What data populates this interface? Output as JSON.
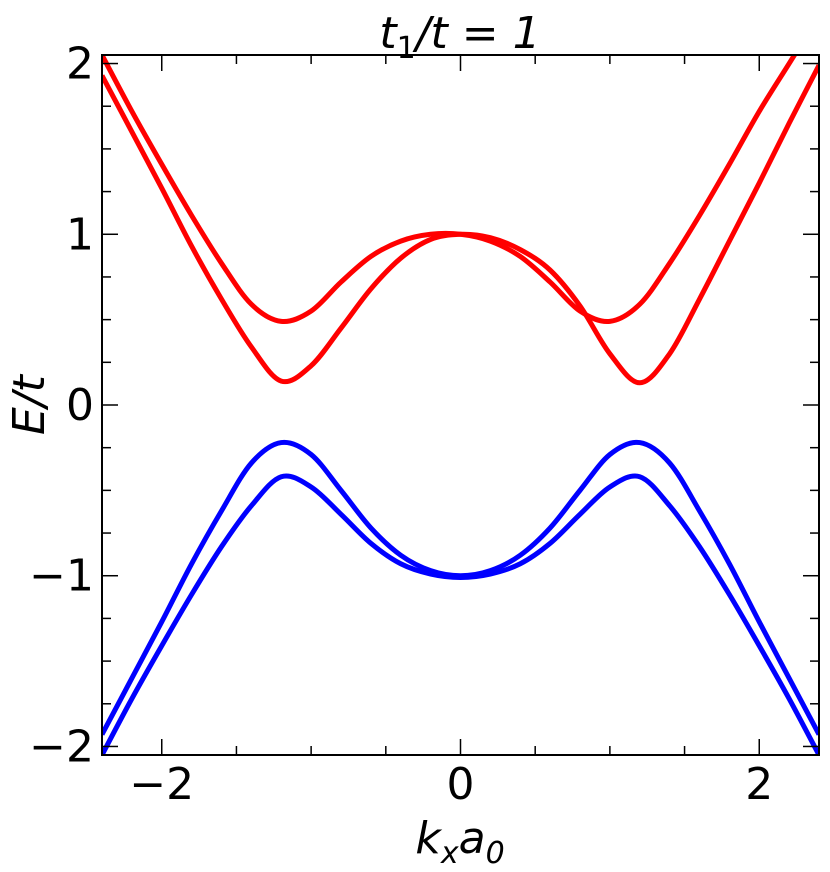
{
  "chart_data": {
    "type": "line",
    "title": {
      "t": "t",
      "sub": "1",
      "rest": "/t = 1"
    },
    "xlabel": {
      "base1": "k",
      "sub1": "x",
      "base2": "a",
      "sub2": "0"
    },
    "ylabel": "E/t",
    "xlim": [
      -2.4,
      2.4
    ],
    "ylim": [
      -2.05,
      2.05
    ],
    "xticks": [
      -2,
      0,
      2
    ],
    "xtick_labels": [
      "−2",
      "0",
      "2"
    ],
    "yticks": [
      -2,
      -1,
      0,
      1,
      2
    ],
    "ytick_labels": [
      "−2",
      "−1",
      "0",
      "1",
      "2"
    ],
    "x_minor_step": 0.5,
    "y_minor_step": 0.25,
    "grid": false,
    "colors": {
      "upper": "#ff0000",
      "lower": "#0000ff"
    },
    "series": [
      {
        "color": "#ff0000",
        "x": [
          -2.4,
          -2.2,
          -2.0,
          -1.8,
          -1.6,
          -1.4,
          -1.2,
          -1.0,
          -0.8,
          -0.6,
          -0.4,
          -0.2,
          0.0,
          0.2,
          0.4,
          0.6,
          0.8,
          1.0,
          1.2,
          1.4,
          1.6,
          1.8,
          2.0,
          2.2,
          2.4
        ],
        "values": [
          2.05,
          1.72,
          1.41,
          1.11,
          0.83,
          0.59,
          0.49,
          0.55,
          0.72,
          0.87,
          0.96,
          1.0,
          1.0,
          0.96,
          0.87,
          0.72,
          0.55,
          0.49,
          0.59,
          0.83,
          1.11,
          1.41,
          1.72,
          2.0,
          2.28
        ]
      },
      {
        "color": "#ff0000",
        "x": [
          -2.4,
          -2.2,
          -2.0,
          -1.8,
          -1.6,
          -1.4,
          -1.2,
          -1.0,
          -0.8,
          -0.6,
          -0.4,
          -0.2,
          0.0,
          0.2,
          0.4,
          0.6,
          0.8,
          1.0,
          1.2,
          1.4,
          1.6,
          1.8,
          2.0,
          2.2,
          2.4
        ],
        "values": [
          1.93,
          1.6,
          1.27,
          0.93,
          0.62,
          0.34,
          0.14,
          0.23,
          0.45,
          0.68,
          0.86,
          0.97,
          1.0,
          0.98,
          0.91,
          0.79,
          0.58,
          0.3,
          0.13,
          0.3,
          0.62,
          0.96,
          1.3,
          1.65,
          1.99
        ]
      },
      {
        "color": "#0000ff",
        "x": [
          -2.4,
          -2.2,
          -2.0,
          -1.8,
          -1.6,
          -1.4,
          -1.2,
          -1.0,
          -0.8,
          -0.6,
          -0.4,
          -0.2,
          0.0,
          0.2,
          0.4,
          0.6,
          0.8,
          1.0,
          1.2,
          1.4,
          1.6,
          1.8,
          2.0,
          2.2,
          2.4
        ],
        "values": [
          -1.93,
          -1.6,
          -1.27,
          -0.93,
          -0.62,
          -0.34,
          -0.22,
          -0.29,
          -0.5,
          -0.72,
          -0.88,
          -0.97,
          -1.0,
          -0.97,
          -0.88,
          -0.72,
          -0.5,
          -0.29,
          -0.22,
          -0.34,
          -0.62,
          -0.93,
          -1.27,
          -1.6,
          -1.93
        ]
      },
      {
        "color": "#0000ff",
        "x": [
          -2.4,
          -2.2,
          -2.0,
          -1.8,
          -1.6,
          -1.4,
          -1.2,
          -1.0,
          -0.8,
          -0.6,
          -0.4,
          -0.2,
          0.0,
          0.2,
          0.4,
          0.6,
          0.8,
          1.0,
          1.2,
          1.4,
          1.6,
          1.8,
          2.0,
          2.2,
          2.4
        ],
        "values": [
          -2.05,
          -1.72,
          -1.41,
          -1.11,
          -0.83,
          -0.59,
          -0.42,
          -0.48,
          -0.64,
          -0.81,
          -0.93,
          -0.99,
          -1.01,
          -0.99,
          -0.93,
          -0.81,
          -0.64,
          -0.48,
          -0.42,
          -0.59,
          -0.83,
          -1.11,
          -1.41,
          -1.72,
          -2.05
        ]
      }
    ]
  }
}
